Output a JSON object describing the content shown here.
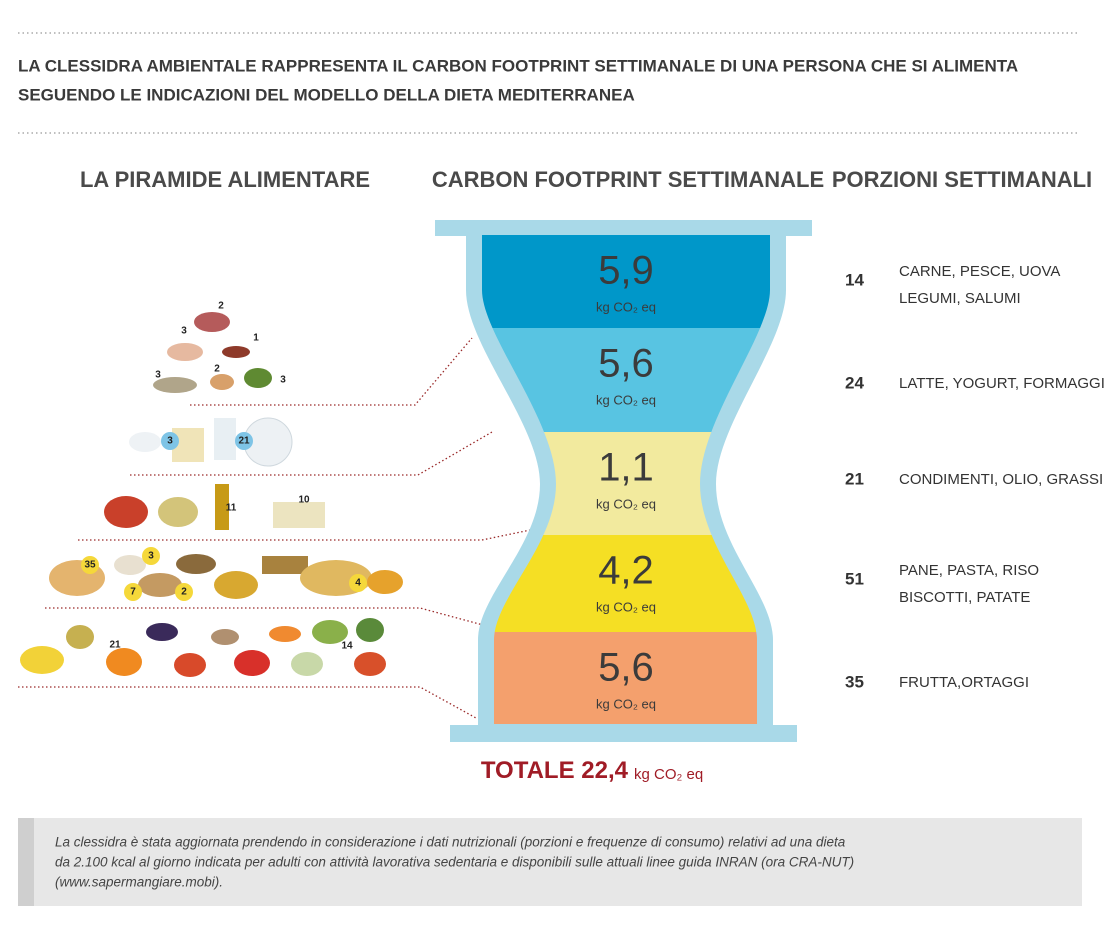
{
  "header": {
    "title": [
      "LA CLESSIDRA AMBIENTALE RAPPRESENTA IL CARBON FOOTPRINT SETTIMANALE DI UNA PERSONA CHE SI ALIMENTA",
      "SEGUENDO LE INDICAZIONI DEL MODELLO DELLA DIETA MEDITERRANEA"
    ]
  },
  "columns": [
    "LA PIRAMIDE ALIMENTARE",
    "CARBON FOOTPRINT SETTIMANALE",
    "PORZIONI SETTIMANALI"
  ],
  "pyramid": {
    "counts": [
      "2",
      "3",
      "1",
      "2",
      "3",
      "3",
      "3",
      "21",
      "11",
      "10",
      "35",
      "3",
      "7",
      "2",
      "4",
      "21",
      "14"
    ]
  },
  "hourglass": {
    "unit": "kg CO₂ eq",
    "levels": [
      {
        "value": "5,9",
        "color": "#0097c9"
      },
      {
        "value": "5,6",
        "color": "#58c4e2"
      },
      {
        "value": "1,1",
        "color": "#f2ea9e"
      },
      {
        "value": "4,2",
        "color": "#f5df24"
      },
      {
        "value": "5,6",
        "color": "#f4a06d"
      }
    ]
  },
  "portions": [
    {
      "count": "14",
      "label": [
        "CARNE, PESCE, UOVA",
        "LEGUMI, SALUMI"
      ]
    },
    {
      "count": "24",
      "label": [
        "LATTE, YOGURT, FORMAGGI"
      ]
    },
    {
      "count": "21",
      "label": [
        "CONDIMENTI, OLIO, GRASSI"
      ]
    },
    {
      "count": "51",
      "label": [
        "PANE, PASTA, RISO",
        "BISCOTTI, PATATE"
      ]
    },
    {
      "count": "35",
      "label": [
        "FRUTTA,ORTAGGI"
      ]
    }
  ],
  "total": {
    "label": "TOTALE",
    "value": "22,4",
    "unit": "kg CO₂ eq"
  },
  "footnote": [
    "La clessidra è stata aggiornata prendendo in considerazione i dati nutrizionali (porzioni e frequenze di consumo) relativi ad una dieta",
    "da 2.100 kcal al giorno indicata per adulti con attività lavorativa sedentaria e disponibili sulle attuali linee guida INRAN (ora CRA-NUT)",
    "(www.sapermangiare.mobi)."
  ]
}
